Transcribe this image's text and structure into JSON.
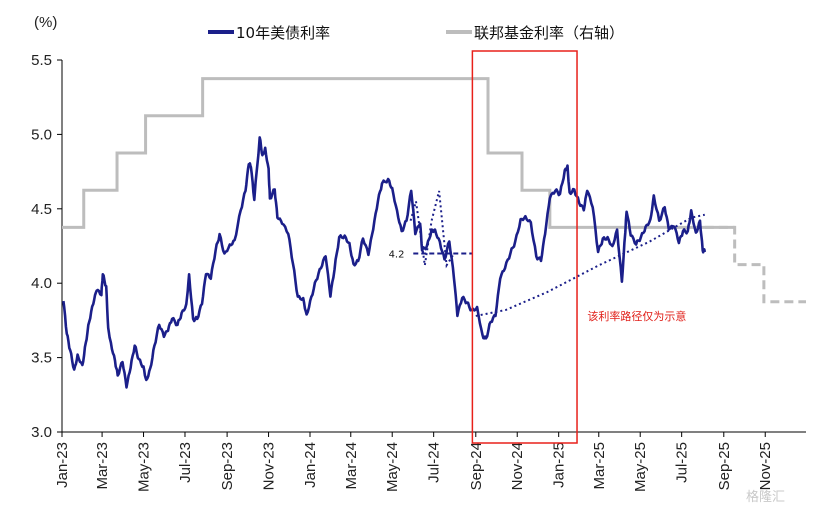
{
  "chart_data": {
    "type": "line",
    "ylabel": "(%)",
    "ylim": [
      3.0,
      5.5
    ],
    "y_ticks": [
      "3.0",
      "3.5",
      "4.0",
      "4.5",
      "5.0",
      "5.5"
    ],
    "x_tick_labels": [
      "Jan-23",
      "Mar-23",
      "May-23",
      "Jul-23",
      "Sep-23",
      "Nov-23",
      "Jan-24",
      "Mar-24",
      "May-24",
      "Jul-24",
      "Sep-24",
      "Nov-24",
      "Jan-25",
      "Mar-25",
      "May-25",
      "Jul-25",
      "Sep-25",
      "Nov-25"
    ],
    "x_range": [
      "2023-01-01",
      "2025-12-31"
    ],
    "legend": [
      "10年美债利率",
      "联邦基金利率（右轴）"
    ],
    "colors": {
      "treasury": "#1b1f8a",
      "fed": "#bdbdbd",
      "highlight": "#e8201a",
      "note": "#e0201a"
    },
    "series": [
      {
        "name": "10年美债利率",
        "points": [
          [
            "2023-01-03",
            3.88
          ],
          [
            "2023-01-08",
            3.66
          ],
          [
            "2023-01-13",
            3.55
          ],
          [
            "2023-01-19",
            3.42
          ],
          [
            "2023-01-24",
            3.52
          ],
          [
            "2023-01-31",
            3.45
          ],
          [
            "2023-02-05",
            3.6
          ],
          [
            "2023-02-10",
            3.74
          ],
          [
            "2023-02-16",
            3.86
          ],
          [
            "2023-02-21",
            3.95
          ],
          [
            "2023-02-28",
            3.92
          ],
          [
            "2023-03-02",
            4.06
          ],
          [
            "2023-03-07",
            3.98
          ],
          [
            "2023-03-10",
            3.7
          ],
          [
            "2023-03-14",
            3.6
          ],
          [
            "2023-03-20",
            3.48
          ],
          [
            "2023-03-24",
            3.38
          ],
          [
            "2023-03-31",
            3.47
          ],
          [
            "2023-04-06",
            3.3
          ],
          [
            "2023-04-12",
            3.43
          ],
          [
            "2023-04-18",
            3.58
          ],
          [
            "2023-04-24",
            3.49
          ],
          [
            "2023-05-01",
            3.44
          ],
          [
            "2023-05-05",
            3.35
          ],
          [
            "2023-05-11",
            3.43
          ],
          [
            "2023-05-17",
            3.58
          ],
          [
            "2023-05-24",
            3.72
          ],
          [
            "2023-05-31",
            3.64
          ],
          [
            "2023-06-06",
            3.68
          ],
          [
            "2023-06-12",
            3.76
          ],
          [
            "2023-06-20",
            3.72
          ],
          [
            "2023-06-26",
            3.8
          ],
          [
            "2023-07-03",
            3.86
          ],
          [
            "2023-07-07",
            4.06
          ],
          [
            "2023-07-13",
            3.76
          ],
          [
            "2023-07-19",
            3.76
          ],
          [
            "2023-07-26",
            3.86
          ],
          [
            "2023-08-01",
            4.06
          ],
          [
            "2023-08-08",
            4.03
          ],
          [
            "2023-08-15",
            4.22
          ],
          [
            "2023-08-21",
            4.33
          ],
          [
            "2023-08-28",
            4.2
          ],
          [
            "2023-09-05",
            4.26
          ],
          [
            "2023-09-12",
            4.29
          ],
          [
            "2023-09-21",
            4.49
          ],
          [
            "2023-09-28",
            4.62
          ],
          [
            "2023-10-03",
            4.8
          ],
          [
            "2023-10-06",
            4.78
          ],
          [
            "2023-10-11",
            4.56
          ],
          [
            "2023-10-19",
            4.98
          ],
          [
            "2023-10-23",
            4.86
          ],
          [
            "2023-10-27",
            4.91
          ],
          [
            "2023-11-01",
            4.77
          ],
          [
            "2023-11-03",
            4.57
          ],
          [
            "2023-11-10",
            4.63
          ],
          [
            "2023-11-14",
            4.44
          ],
          [
            "2023-11-21",
            4.4
          ],
          [
            "2023-11-30",
            4.33
          ],
          [
            "2023-12-07",
            4.13
          ],
          [
            "2023-12-14",
            3.91
          ],
          [
            "2023-12-22",
            3.9
          ],
          [
            "2023-12-27",
            3.79
          ],
          [
            "2024-01-03",
            3.91
          ],
          [
            "2024-01-10",
            4.02
          ],
          [
            "2024-01-17",
            4.1
          ],
          [
            "2024-01-24",
            4.18
          ],
          [
            "2024-01-31",
            3.91
          ],
          [
            "2024-02-06",
            4.09
          ],
          [
            "2024-02-13",
            4.31
          ],
          [
            "2024-02-21",
            4.32
          ],
          [
            "2024-02-28",
            4.27
          ],
          [
            "2024-03-05",
            4.13
          ],
          [
            "2024-03-12",
            4.15
          ],
          [
            "2024-03-19",
            4.3
          ],
          [
            "2024-03-27",
            4.19
          ],
          [
            "2024-04-03",
            4.36
          ],
          [
            "2024-04-10",
            4.55
          ],
          [
            "2024-04-16",
            4.67
          ],
          [
            "2024-04-25",
            4.7
          ],
          [
            "2024-05-01",
            4.64
          ],
          [
            "2024-05-08",
            4.49
          ],
          [
            "2024-05-15",
            4.35
          ],
          [
            "2024-05-22",
            4.42
          ],
          [
            "2024-05-29",
            4.62
          ],
          [
            "2024-06-04",
            4.33
          ],
          [
            "2024-06-11",
            4.4
          ],
          [
            "2024-06-14",
            4.22
          ],
          [
            "2024-06-21",
            4.25
          ],
          [
            "2024-06-28",
            4.36
          ],
          [
            "2024-07-03",
            4.36
          ],
          [
            "2024-07-10",
            4.28
          ],
          [
            "2024-07-17",
            4.16
          ],
          [
            "2024-07-24",
            4.28
          ],
          [
            "2024-07-31",
            4.03
          ],
          [
            "2024-08-05",
            3.78
          ],
          [
            "2024-08-12",
            3.9
          ],
          [
            "2024-08-19",
            3.87
          ],
          [
            "2024-08-26",
            3.82
          ],
          [
            "2024-09-03",
            3.84
          ],
          [
            "2024-09-11",
            3.65
          ],
          [
            "2024-09-16",
            3.63
          ],
          [
            "2024-09-23",
            3.74
          ],
          [
            "2024-09-30",
            3.78
          ],
          [
            "2024-10-07",
            4.03
          ],
          [
            "2024-10-14",
            4.1
          ],
          [
            "2024-10-22",
            4.2
          ],
          [
            "2024-10-29",
            4.28
          ],
          [
            "2024-11-06",
            4.43
          ],
          [
            "2024-11-13",
            4.45
          ],
          [
            "2024-11-21",
            4.41
          ],
          [
            "2024-11-29",
            4.18
          ],
          [
            "2024-12-06",
            4.15
          ],
          [
            "2024-12-12",
            4.33
          ],
          [
            "2024-12-19",
            4.57
          ],
          [
            "2024-12-27",
            4.62
          ],
          [
            "2025-01-03",
            4.6
          ],
          [
            "2025-01-10",
            4.76
          ],
          [
            "2025-01-14",
            4.79
          ],
          [
            "2025-01-17",
            4.61
          ],
          [
            "2025-01-24",
            4.63
          ],
          [
            "2025-01-31",
            4.54
          ],
          [
            "2025-02-07",
            4.49
          ],
          [
            "2025-02-12",
            4.62
          ],
          [
            "2025-02-20",
            4.51
          ],
          [
            "2025-02-28",
            4.21
          ],
          [
            "2025-03-07",
            4.3
          ],
          [
            "2025-03-14",
            4.31
          ],
          [
            "2025-03-21",
            4.25
          ],
          [
            "2025-03-28",
            4.36
          ],
          [
            "2025-04-04",
            4.01
          ],
          [
            "2025-04-09",
            4.34
          ],
          [
            "2025-04-11",
            4.48
          ],
          [
            "2025-04-17",
            4.32
          ],
          [
            "2025-04-25",
            4.26
          ],
          [
            "2025-05-02",
            4.31
          ],
          [
            "2025-05-09",
            4.38
          ],
          [
            "2025-05-16",
            4.43
          ],
          [
            "2025-05-21",
            4.59
          ],
          [
            "2025-05-29",
            4.42
          ],
          [
            "2025-06-06",
            4.51
          ],
          [
            "2025-06-12",
            4.36
          ],
          [
            "2025-06-20",
            4.38
          ],
          [
            "2025-06-27",
            4.27
          ],
          [
            "2025-07-03",
            4.35
          ],
          [
            "2025-07-10",
            4.35
          ],
          [
            "2025-07-15",
            4.49
          ],
          [
            "2025-07-22",
            4.34
          ],
          [
            "2025-07-28",
            4.42
          ],
          [
            "2025-08-01",
            4.22
          ],
          [
            "2025-08-04",
            4.21
          ]
        ]
      },
      {
        "name": "联邦基金利率（右轴）",
        "steps": [
          [
            "2023-01-01",
            4.375
          ],
          [
            "2023-02-02",
            4.625
          ],
          [
            "2023-03-23",
            4.875
          ],
          [
            "2023-05-04",
            5.125
          ],
          [
            "2023-07-27",
            5.375
          ],
          [
            "2024-09-19",
            4.875
          ],
          [
            "2024-11-08",
            4.625
          ],
          [
            "2024-12-19",
            4.375
          ]
        ],
        "steps_end": "2025-09-17",
        "projection_steps": [
          [
            "2025-08-04",
            4.375
          ],
          [
            "2025-09-17",
            4.125
          ],
          [
            "2025-10-30",
            3.875
          ]
        ],
        "projection_end": "2025-12-31"
      }
    ],
    "illustrative_paths": [
      {
        "points": [
          [
            "2024-05-28",
            4.42
          ],
          [
            "2024-06-05",
            4.55
          ],
          [
            "2024-06-18",
            4.12
          ],
          [
            "2024-06-28",
            4.42
          ],
          [
            "2024-07-09",
            4.62
          ],
          [
            "2024-07-20",
            4.12
          ],
          [
            "2024-07-31",
            4.2
          ]
        ]
      },
      {
        "points": [
          [
            "2024-09-01",
            3.78
          ],
          [
            "2024-10-15",
            3.82
          ],
          [
            "2024-12-15",
            3.94
          ],
          [
            "2025-03-01",
            4.12
          ],
          [
            "2025-05-15",
            4.28
          ],
          [
            "2025-07-15",
            4.44
          ],
          [
            "2025-08-04",
            4.46
          ]
        ]
      }
    ],
    "annotations": [
      {
        "text": "4.2",
        "x": "2024-05-22",
        "y": 4.2
      },
      {
        "text": "该利率路径仅为示意",
        "x": "2025-04-15",
        "y": 3.78
      }
    ],
    "highlight_range": [
      "2024-08-27",
      "2025-01-28"
    ]
  },
  "watermark": "格隆汇"
}
